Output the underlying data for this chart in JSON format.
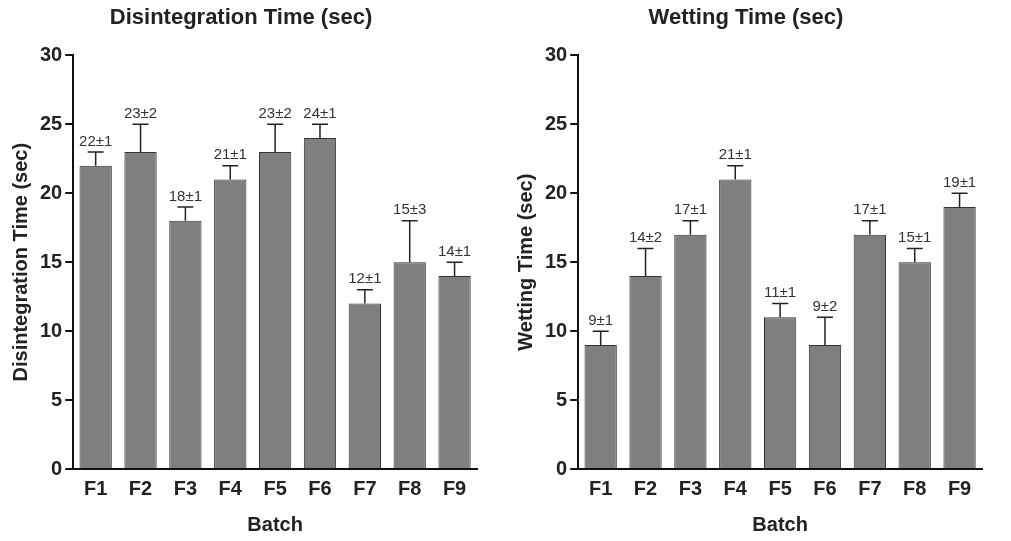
{
  "chart_data": [
    {
      "type": "bar",
      "title": "Disintegration Time (sec)",
      "xlabel": "Batch",
      "ylabel": "Disintegration Time (sec)",
      "categories": [
        "F1",
        "F2",
        "F3",
        "F4",
        "F5",
        "F6",
        "F7",
        "F8",
        "F9"
      ],
      "values": [
        22,
        23,
        18,
        21,
        23,
        24,
        12,
        15,
        14
      ],
      "color": "#7f7f7f",
      "errors": [
        [
          22,
          23
        ],
        [
          23,
          25
        ],
        [
          18,
          19
        ],
        [
          21,
          22
        ],
        [
          23,
          25
        ],
        [
          24,
          25
        ],
        [
          12,
          13
        ],
        [
          15,
          18
        ],
        [
          14,
          15
        ]
      ],
      "value_labels": [
        "22±1",
        "23±2",
        "18±1",
        "21±1",
        "23±2",
        "24±1",
        "12±1",
        "15±3",
        "14±1"
      ],
      "ylim": [
        0,
        30
      ],
      "yticks": [
        0,
        5,
        10,
        15,
        20,
        25,
        30
      ]
    },
    {
      "type": "bar",
      "title": "Wetting Time (sec)",
      "xlabel": "Batch",
      "ylabel": "Wetting Time (sec)",
      "categories": [
        "F1",
        "F2",
        "F3",
        "F4",
        "F5",
        "F6",
        "F7",
        "F8",
        "F9"
      ],
      "values": [
        9,
        14,
        17,
        21,
        11,
        9,
        17,
        15,
        19
      ],
      "color": "#7f7f7f",
      "errors": [
        [
          9,
          10
        ],
        [
          14,
          16
        ],
        [
          17,
          18
        ],
        [
          21,
          22
        ],
        [
          11,
          12
        ],
        [
          9,
          11
        ],
        [
          17,
          18
        ],
        [
          15,
          16
        ],
        [
          19,
          20
        ]
      ],
      "value_labels": [
        "9±1",
        "14±2",
        "17±1",
        "21±1",
        "11±1",
        "9±2",
        "17±1",
        "15±1",
        "19±1"
      ],
      "ylim": [
        0,
        30
      ],
      "yticks": [
        0,
        5,
        10,
        15,
        20,
        25,
        30
      ]
    }
  ]
}
